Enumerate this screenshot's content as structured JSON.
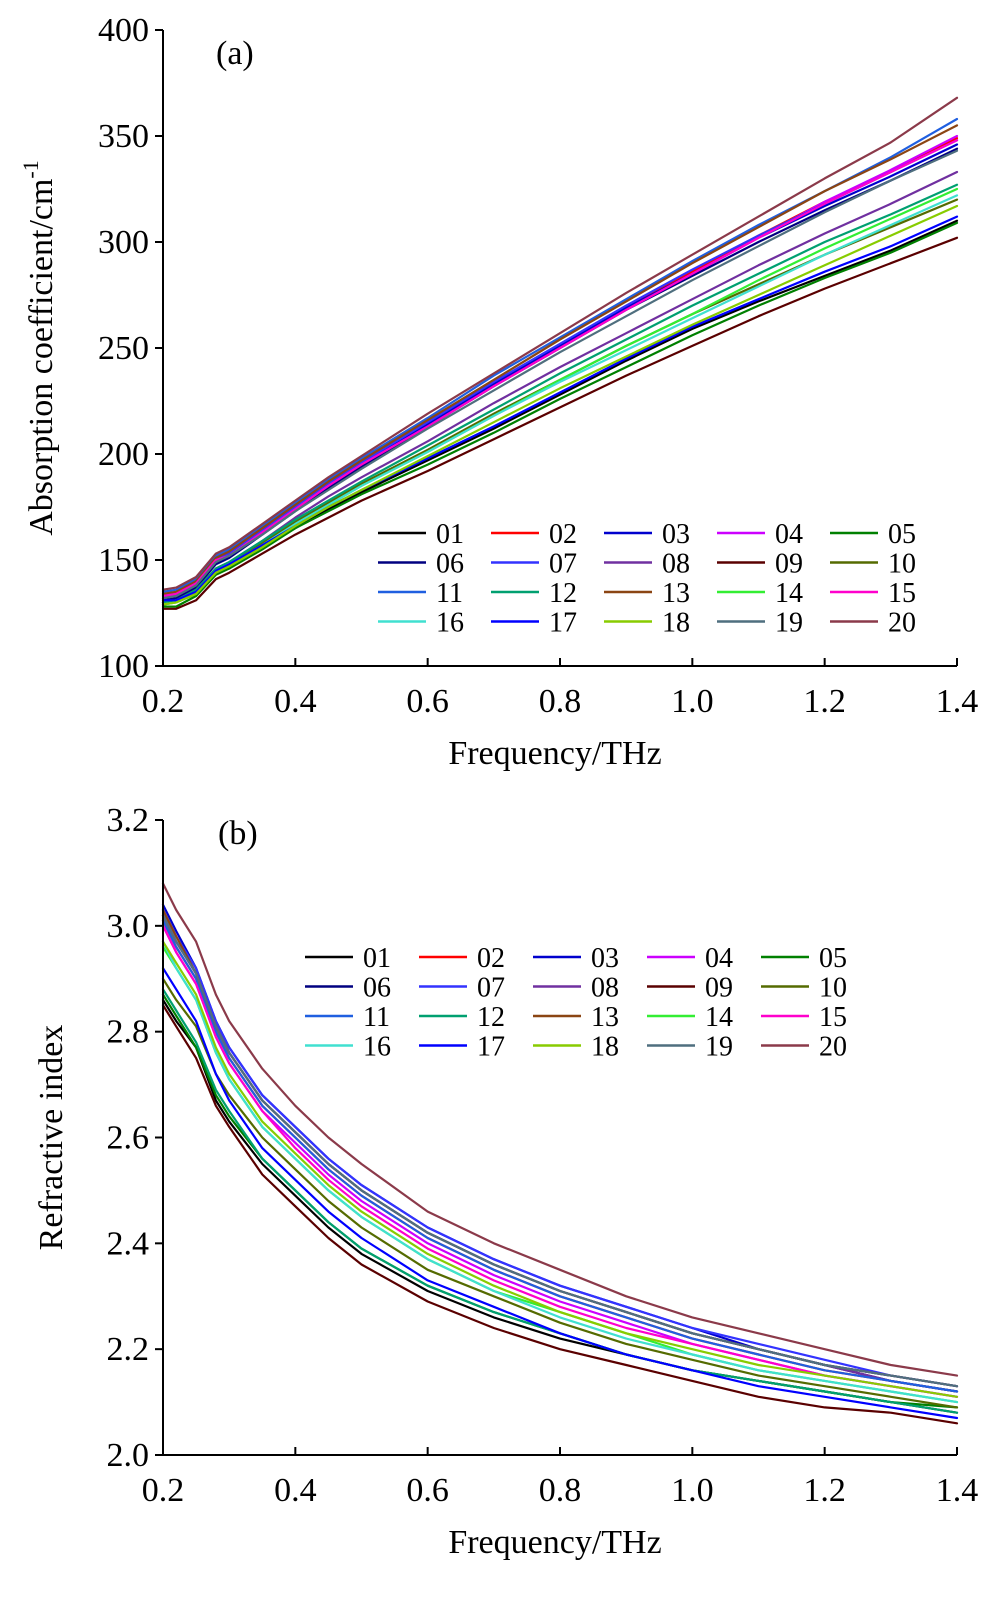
{
  "chart_data": [
    {
      "type": "line",
      "panel_label": "(a)",
      "xlabel": "Frequency/THz",
      "ylabel": "Absorption coefficient/cm",
      "ylabel_sup": "-1",
      "xlim": [
        0.2,
        1.4
      ],
      "ylim": [
        100,
        400
      ],
      "xticks": [
        "0.2",
        "0.4",
        "0.6",
        "0.8",
        "1.0",
        "1.2",
        "1.4"
      ],
      "yticks": [
        "100",
        "150",
        "200",
        "250",
        "300",
        "350",
        "400"
      ],
      "grid": false,
      "legend_position": "bottom-right",
      "x": [
        0.2,
        0.22,
        0.25,
        0.28,
        0.3,
        0.35,
        0.4,
        0.45,
        0.5,
        0.6,
        0.7,
        0.8,
        0.9,
        1.0,
        1.1,
        1.2,
        1.3,
        1.4
      ],
      "series": [
        {
          "name": "01",
          "color": "#000000",
          "values": [
            130,
            130,
            134,
            144,
            146,
            156,
            165,
            174,
            182,
            197,
            212,
            228,
            244,
            259,
            272,
            284,
            296,
            310
          ]
        },
        {
          "name": "02",
          "color": "#ff0000",
          "values": [
            134,
            135,
            140,
            150,
            153,
            164,
            175,
            186,
            196,
            214,
            234,
            251,
            269,
            286,
            303,
            319,
            333,
            349
          ]
        },
        {
          "name": "03",
          "color": "#0000cd",
          "values": [
            132,
            133,
            138,
            149,
            152,
            163,
            174,
            185,
            195,
            214,
            233,
            251,
            269,
            285,
            302,
            317,
            331,
            346
          ]
        },
        {
          "name": "04",
          "color": "#cc00ff",
          "values": [
            133,
            134,
            139,
            150,
            152,
            163,
            175,
            185,
            195,
            213,
            232,
            250,
            268,
            285,
            302,
            319,
            334,
            350
          ]
        },
        {
          "name": "05",
          "color": "#008000",
          "values": [
            128,
            128,
            133,
            143,
            146,
            155,
            165,
            173,
            181,
            195,
            210,
            226,
            241,
            256,
            270,
            283,
            295,
            309
          ]
        },
        {
          "name": "06",
          "color": "#000080",
          "values": [
            131,
            132,
            137,
            148,
            151,
            162,
            173,
            184,
            194,
            213,
            232,
            250,
            268,
            284,
            300,
            315,
            329,
            344
          ]
        },
        {
          "name": "07",
          "color": "#3333ff",
          "values": [
            133,
            134,
            139,
            150,
            153,
            164,
            175,
            186,
            196,
            215,
            234,
            252,
            270,
            287,
            303,
            318,
            333,
            348
          ]
        },
        {
          "name": "08",
          "color": "#7030a0",
          "values": [
            130,
            131,
            136,
            146,
            149,
            159,
            170,
            180,
            189,
            206,
            224,
            241,
            257,
            273,
            289,
            304,
            318,
            333
          ]
        },
        {
          "name": "09",
          "color": "#5a0000",
          "values": [
            127,
            127,
            131,
            141,
            144,
            153,
            162,
            170,
            178,
            192,
            207,
            222,
            237,
            251,
            265,
            278,
            290,
            302
          ]
        },
        {
          "name": "10",
          "color": "#556b00",
          "values": [
            130,
            130,
            135,
            145,
            148,
            158,
            168,
            177,
            186,
            202,
            219,
            235,
            251,
            266,
            280,
            294,
            307,
            320
          ]
        },
        {
          "name": "11",
          "color": "#1f5fe0",
          "values": [
            135,
            136,
            141,
            152,
            155,
            166,
            177,
            188,
            198,
            217,
            237,
            255,
            273,
            291,
            308,
            324,
            340,
            358
          ]
        },
        {
          "name": "12",
          "color": "#00a070",
          "values": [
            130,
            131,
            136,
            146,
            149,
            159,
            169,
            178,
            187,
            204,
            221,
            238,
            254,
            270,
            285,
            300,
            313,
            327
          ]
        },
        {
          "name": "13",
          "color": "#8b4513",
          "values": [
            134,
            135,
            140,
            151,
            154,
            165,
            176,
            187,
            197,
            216,
            235,
            254,
            272,
            290,
            307,
            324,
            339,
            355
          ]
        },
        {
          "name": "14",
          "color": "#33ee33",
          "values": [
            129,
            130,
            134,
            145,
            148,
            157,
            167,
            176,
            185,
            201,
            218,
            235,
            251,
            266,
            282,
            297,
            311,
            325
          ]
        },
        {
          "name": "15",
          "color": "#ff00cc",
          "values": [
            133,
            134,
            139,
            150,
            152,
            163,
            174,
            185,
            195,
            213,
            232,
            250,
            268,
            285,
            302,
            318,
            333,
            348
          ]
        },
        {
          "name": "16",
          "color": "#40e0d0",
          "values": [
            129,
            130,
            135,
            145,
            148,
            157,
            167,
            176,
            185,
            201,
            218,
            234,
            249,
            264,
            279,
            294,
            308,
            322
          ]
        },
        {
          "name": "17",
          "color": "#0000ff",
          "values": [
            131,
            131,
            135,
            145,
            148,
            157,
            166,
            175,
            183,
            198,
            213,
            229,
            245,
            260,
            273,
            286,
            298,
            312
          ]
        },
        {
          "name": "18",
          "color": "#88cc00",
          "values": [
            129,
            130,
            134,
            144,
            147,
            156,
            166,
            175,
            183,
            199,
            215,
            231,
            246,
            261,
            275,
            289,
            303,
            317
          ]
        },
        {
          "name": "19",
          "color": "#4f6f7f",
          "values": [
            132,
            133,
            138,
            149,
            152,
            162,
            173,
            183,
            193,
            212,
            230,
            248,
            265,
            282,
            298,
            314,
            329,
            343
          ]
        },
        {
          "name": "20",
          "color": "#8b3a4a",
          "values": [
            136,
            137,
            142,
            153,
            156,
            167,
            178,
            189,
            199,
            219,
            238,
            257,
            276,
            294,
            312,
            330,
            347,
            368
          ]
        }
      ]
    },
    {
      "type": "line",
      "panel_label": "(b)",
      "xlabel": "Frequency/THz",
      "ylabel": "Refractive index",
      "xlim": [
        0.2,
        1.4
      ],
      "ylim": [
        2.0,
        3.2
      ],
      "xticks": [
        "0.2",
        "0.4",
        "0.6",
        "0.8",
        "1.0",
        "1.2",
        "1.4"
      ],
      "yticks": [
        "2.0",
        "2.2",
        "2.4",
        "2.6",
        "2.8",
        "3.0",
        "3.2"
      ],
      "grid": false,
      "legend_position": "top-right",
      "x": [
        0.2,
        0.22,
        0.25,
        0.28,
        0.3,
        0.35,
        0.4,
        0.45,
        0.5,
        0.6,
        0.7,
        0.8,
        0.9,
        1.0,
        1.1,
        1.2,
        1.3,
        1.4
      ],
      "series": [
        {
          "name": "01",
          "color": "#000000",
          "values": [
            2.86,
            2.82,
            2.77,
            2.67,
            2.63,
            2.55,
            2.49,
            2.43,
            2.38,
            2.31,
            2.26,
            2.22,
            2.19,
            2.16,
            2.14,
            2.12,
            2.1,
            2.08
          ]
        },
        {
          "name": "02",
          "color": "#ff0000",
          "values": [
            3.01,
            2.96,
            2.9,
            2.8,
            2.75,
            2.66,
            2.6,
            2.54,
            2.49,
            2.41,
            2.35,
            2.3,
            2.26,
            2.22,
            2.19,
            2.16,
            2.14,
            2.12
          ]
        },
        {
          "name": "03",
          "color": "#0000cd",
          "values": [
            3.04,
            2.99,
            2.92,
            2.82,
            2.77,
            2.68,
            2.62,
            2.56,
            2.51,
            2.43,
            2.37,
            2.32,
            2.28,
            2.24,
            2.2,
            2.17,
            2.15,
            2.13
          ]
        },
        {
          "name": "04",
          "color": "#cc00ff",
          "values": [
            3.0,
            2.95,
            2.89,
            2.79,
            2.74,
            2.65,
            2.59,
            2.53,
            2.48,
            2.4,
            2.34,
            2.29,
            2.25,
            2.21,
            2.18,
            2.15,
            2.13,
            2.11
          ]
        },
        {
          "name": "05",
          "color": "#008000",
          "values": [
            2.87,
            2.83,
            2.77,
            2.68,
            2.64,
            2.56,
            2.5,
            2.44,
            2.39,
            2.32,
            2.27,
            2.23,
            2.19,
            2.16,
            2.14,
            2.12,
            2.1,
            2.09
          ]
        },
        {
          "name": "06",
          "color": "#000080",
          "values": [
            3.02,
            2.97,
            2.91,
            2.81,
            2.76,
            2.67,
            2.61,
            2.55,
            2.5,
            2.42,
            2.36,
            2.31,
            2.27,
            2.23,
            2.2,
            2.17,
            2.14,
            2.12
          ]
        },
        {
          "name": "07",
          "color": "#3333ff",
          "values": [
            3.03,
            2.98,
            2.92,
            2.82,
            2.77,
            2.68,
            2.62,
            2.56,
            2.51,
            2.43,
            2.37,
            2.32,
            2.28,
            2.24,
            2.21,
            2.18,
            2.15,
            2.13
          ]
        },
        {
          "name": "08",
          "color": "#7030a0",
          "values": [
            3.02,
            2.97,
            2.91,
            2.81,
            2.76,
            2.67,
            2.61,
            2.55,
            2.5,
            2.42,
            2.36,
            2.31,
            2.27,
            2.23,
            2.2,
            2.17,
            2.14,
            2.12
          ]
        },
        {
          "name": "09",
          "color": "#5a0000",
          "values": [
            2.85,
            2.81,
            2.75,
            2.66,
            2.62,
            2.53,
            2.47,
            2.41,
            2.36,
            2.29,
            2.24,
            2.2,
            2.17,
            2.14,
            2.11,
            2.09,
            2.08,
            2.06
          ]
        },
        {
          "name": "10",
          "color": "#556b00",
          "values": [
            2.9,
            2.86,
            2.81,
            2.72,
            2.68,
            2.6,
            2.54,
            2.48,
            2.43,
            2.35,
            2.3,
            2.25,
            2.21,
            2.18,
            2.15,
            2.13,
            2.11,
            2.09
          ]
        },
        {
          "name": "11",
          "color": "#1f5fe0",
          "values": [
            3.01,
            2.96,
            2.9,
            2.8,
            2.75,
            2.66,
            2.6,
            2.54,
            2.49,
            2.41,
            2.35,
            2.3,
            2.26,
            2.22,
            2.19,
            2.16,
            2.14,
            2.12
          ]
        },
        {
          "name": "12",
          "color": "#00a070",
          "values": [
            2.88,
            2.84,
            2.78,
            2.69,
            2.65,
            2.56,
            2.5,
            2.44,
            2.39,
            2.32,
            2.27,
            2.23,
            2.19,
            2.16,
            2.14,
            2.12,
            2.1,
            2.08
          ]
        },
        {
          "name": "13",
          "color": "#8b4513",
          "values": [
            3.03,
            2.98,
            2.91,
            2.81,
            2.76,
            2.67,
            2.61,
            2.55,
            2.5,
            2.42,
            2.36,
            2.31,
            2.27,
            2.23,
            2.2,
            2.17,
            2.15,
            2.13
          ]
        },
        {
          "name": "14",
          "color": "#33ee33",
          "values": [
            2.96,
            2.92,
            2.86,
            2.76,
            2.71,
            2.62,
            2.56,
            2.5,
            2.45,
            2.37,
            2.31,
            2.27,
            2.23,
            2.19,
            2.16,
            2.14,
            2.12,
            2.1
          ]
        },
        {
          "name": "15",
          "color": "#ff00cc",
          "values": [
            3.0,
            2.95,
            2.89,
            2.79,
            2.74,
            2.65,
            2.58,
            2.52,
            2.47,
            2.39,
            2.33,
            2.28,
            2.24,
            2.21,
            2.18,
            2.15,
            2.13,
            2.11
          ]
        },
        {
          "name": "16",
          "color": "#40e0d0",
          "values": [
            2.97,
            2.92,
            2.86,
            2.76,
            2.71,
            2.62,
            2.56,
            2.5,
            2.45,
            2.37,
            2.31,
            2.26,
            2.22,
            2.19,
            2.16,
            2.14,
            2.12,
            2.1
          ]
        },
        {
          "name": "17",
          "color": "#0000ff",
          "values": [
            2.92,
            2.88,
            2.82,
            2.72,
            2.67,
            2.58,
            2.52,
            2.46,
            2.41,
            2.33,
            2.28,
            2.23,
            2.19,
            2.16,
            2.13,
            2.11,
            2.09,
            2.07
          ]
        },
        {
          "name": "18",
          "color": "#88cc00",
          "values": [
            2.97,
            2.93,
            2.87,
            2.77,
            2.72,
            2.63,
            2.57,
            2.51,
            2.46,
            2.38,
            2.32,
            2.27,
            2.23,
            2.2,
            2.17,
            2.15,
            2.13,
            2.11
          ]
        },
        {
          "name": "19",
          "color": "#4f6f7f",
          "values": [
            3.02,
            2.97,
            2.91,
            2.81,
            2.76,
            2.67,
            2.61,
            2.55,
            2.5,
            2.42,
            2.36,
            2.31,
            2.27,
            2.23,
            2.2,
            2.17,
            2.15,
            2.13
          ]
        },
        {
          "name": "20",
          "color": "#8b3a4a",
          "values": [
            3.08,
            3.03,
            2.97,
            2.87,
            2.82,
            2.73,
            2.66,
            2.6,
            2.55,
            2.46,
            2.4,
            2.35,
            2.3,
            2.26,
            2.23,
            2.2,
            2.17,
            2.15
          ]
        }
      ]
    }
  ]
}
